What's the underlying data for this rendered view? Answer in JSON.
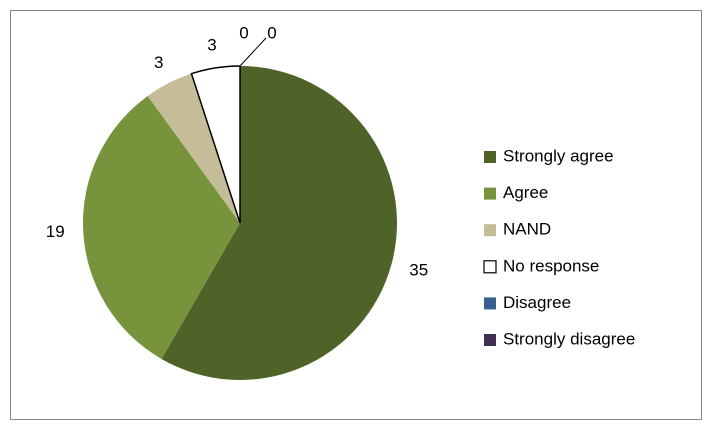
{
  "chart_data": {
    "type": "pie",
    "categories": [
      "Strongly agree",
      "Agree",
      "NAND",
      "No response",
      "Disagree",
      "Strongly disagree"
    ],
    "values": [
      35,
      19,
      3,
      3,
      0,
      0
    ],
    "colors": [
      "#4f6228",
      "#77933c",
      "#c4bd97",
      "#ffffff",
      "#376092",
      "#403152"
    ],
    "legend": "right"
  }
}
